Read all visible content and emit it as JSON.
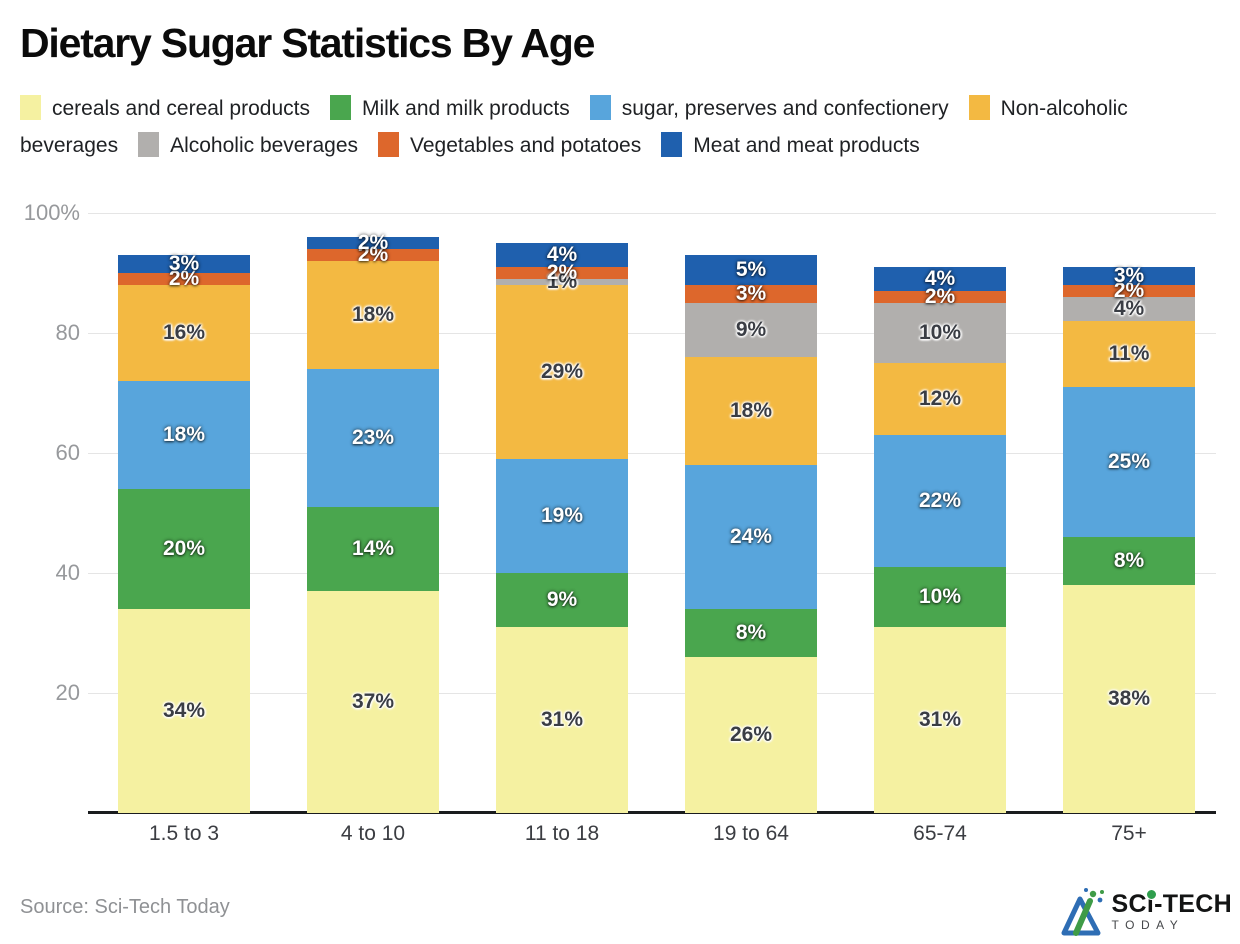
{
  "header": {
    "title": "Dietary Sugar Statistics By Age"
  },
  "footer": {
    "source": "Source: Sci-Tech Today",
    "logo": {
      "part1": "SC",
      "part2": "i",
      "part3": "-TECH",
      "sub": "TODAY"
    }
  },
  "colors": {
    "background": "#ffffff",
    "grid": "#e5e5e5",
    "baseline": "#1a1c1e",
    "axis_label": "#97999c",
    "category_label": "#3b3d42",
    "dark_value_label": "#3a3d44",
    "light_value_label": "#ffffff",
    "logo_green": "#2f9e4d",
    "logo_blue": "#2e6db4"
  },
  "chart_data": {
    "type": "bar",
    "stacked": true,
    "title": "Dietary Sugar Statistics By Age",
    "xlabel": "",
    "ylabel": "",
    "ylim": [
      0,
      100
    ],
    "grid": true,
    "legend_position": "top",
    "value_suffix": "%",
    "categories": [
      "1.5 to 3",
      "4 to 10",
      "11 to 18",
      "19 to 64",
      "65-74",
      "75+"
    ],
    "y_ticks": [
      {
        "label": "100%",
        "value": 100
      },
      {
        "label": "80",
        "value": 80
      },
      {
        "label": "60",
        "value": 60
      },
      {
        "label": "40",
        "value": 40
      },
      {
        "label": "20",
        "value": 20
      }
    ],
    "series": [
      {
        "name": "cereals and cereal products",
        "color": "#f5f1a1",
        "label_style": "dark",
        "values": [
          34,
          37,
          31,
          26,
          31,
          38
        ]
      },
      {
        "name": "Milk and milk products",
        "color": "#4aa64e",
        "label_style": "light",
        "values": [
          20,
          14,
          9,
          8,
          10,
          8
        ]
      },
      {
        "name": "sugar, preserves and confectionery",
        "color": "#58a5dc",
        "label_style": "light",
        "values": [
          18,
          23,
          19,
          24,
          22,
          25
        ]
      },
      {
        "name": "Non-alcoholic beverages",
        "color": "#f3b942",
        "label_style": "dark",
        "values": [
          16,
          18,
          29,
          18,
          12,
          11
        ]
      },
      {
        "name": "Alcoholic beverages",
        "color": "#b1afad",
        "label_style": "dark",
        "values": [
          0,
          0,
          1,
          9,
          10,
          4
        ]
      },
      {
        "name": "Vegetables and potatoes",
        "color": "#dd672c",
        "label_style": "light",
        "values": [
          2,
          2,
          2,
          3,
          2,
          2
        ]
      },
      {
        "name": "Meat and meat products",
        "color": "#1f60ae",
        "label_style": "light",
        "values": [
          3,
          2,
          4,
          5,
          4,
          3
        ]
      }
    ]
  }
}
